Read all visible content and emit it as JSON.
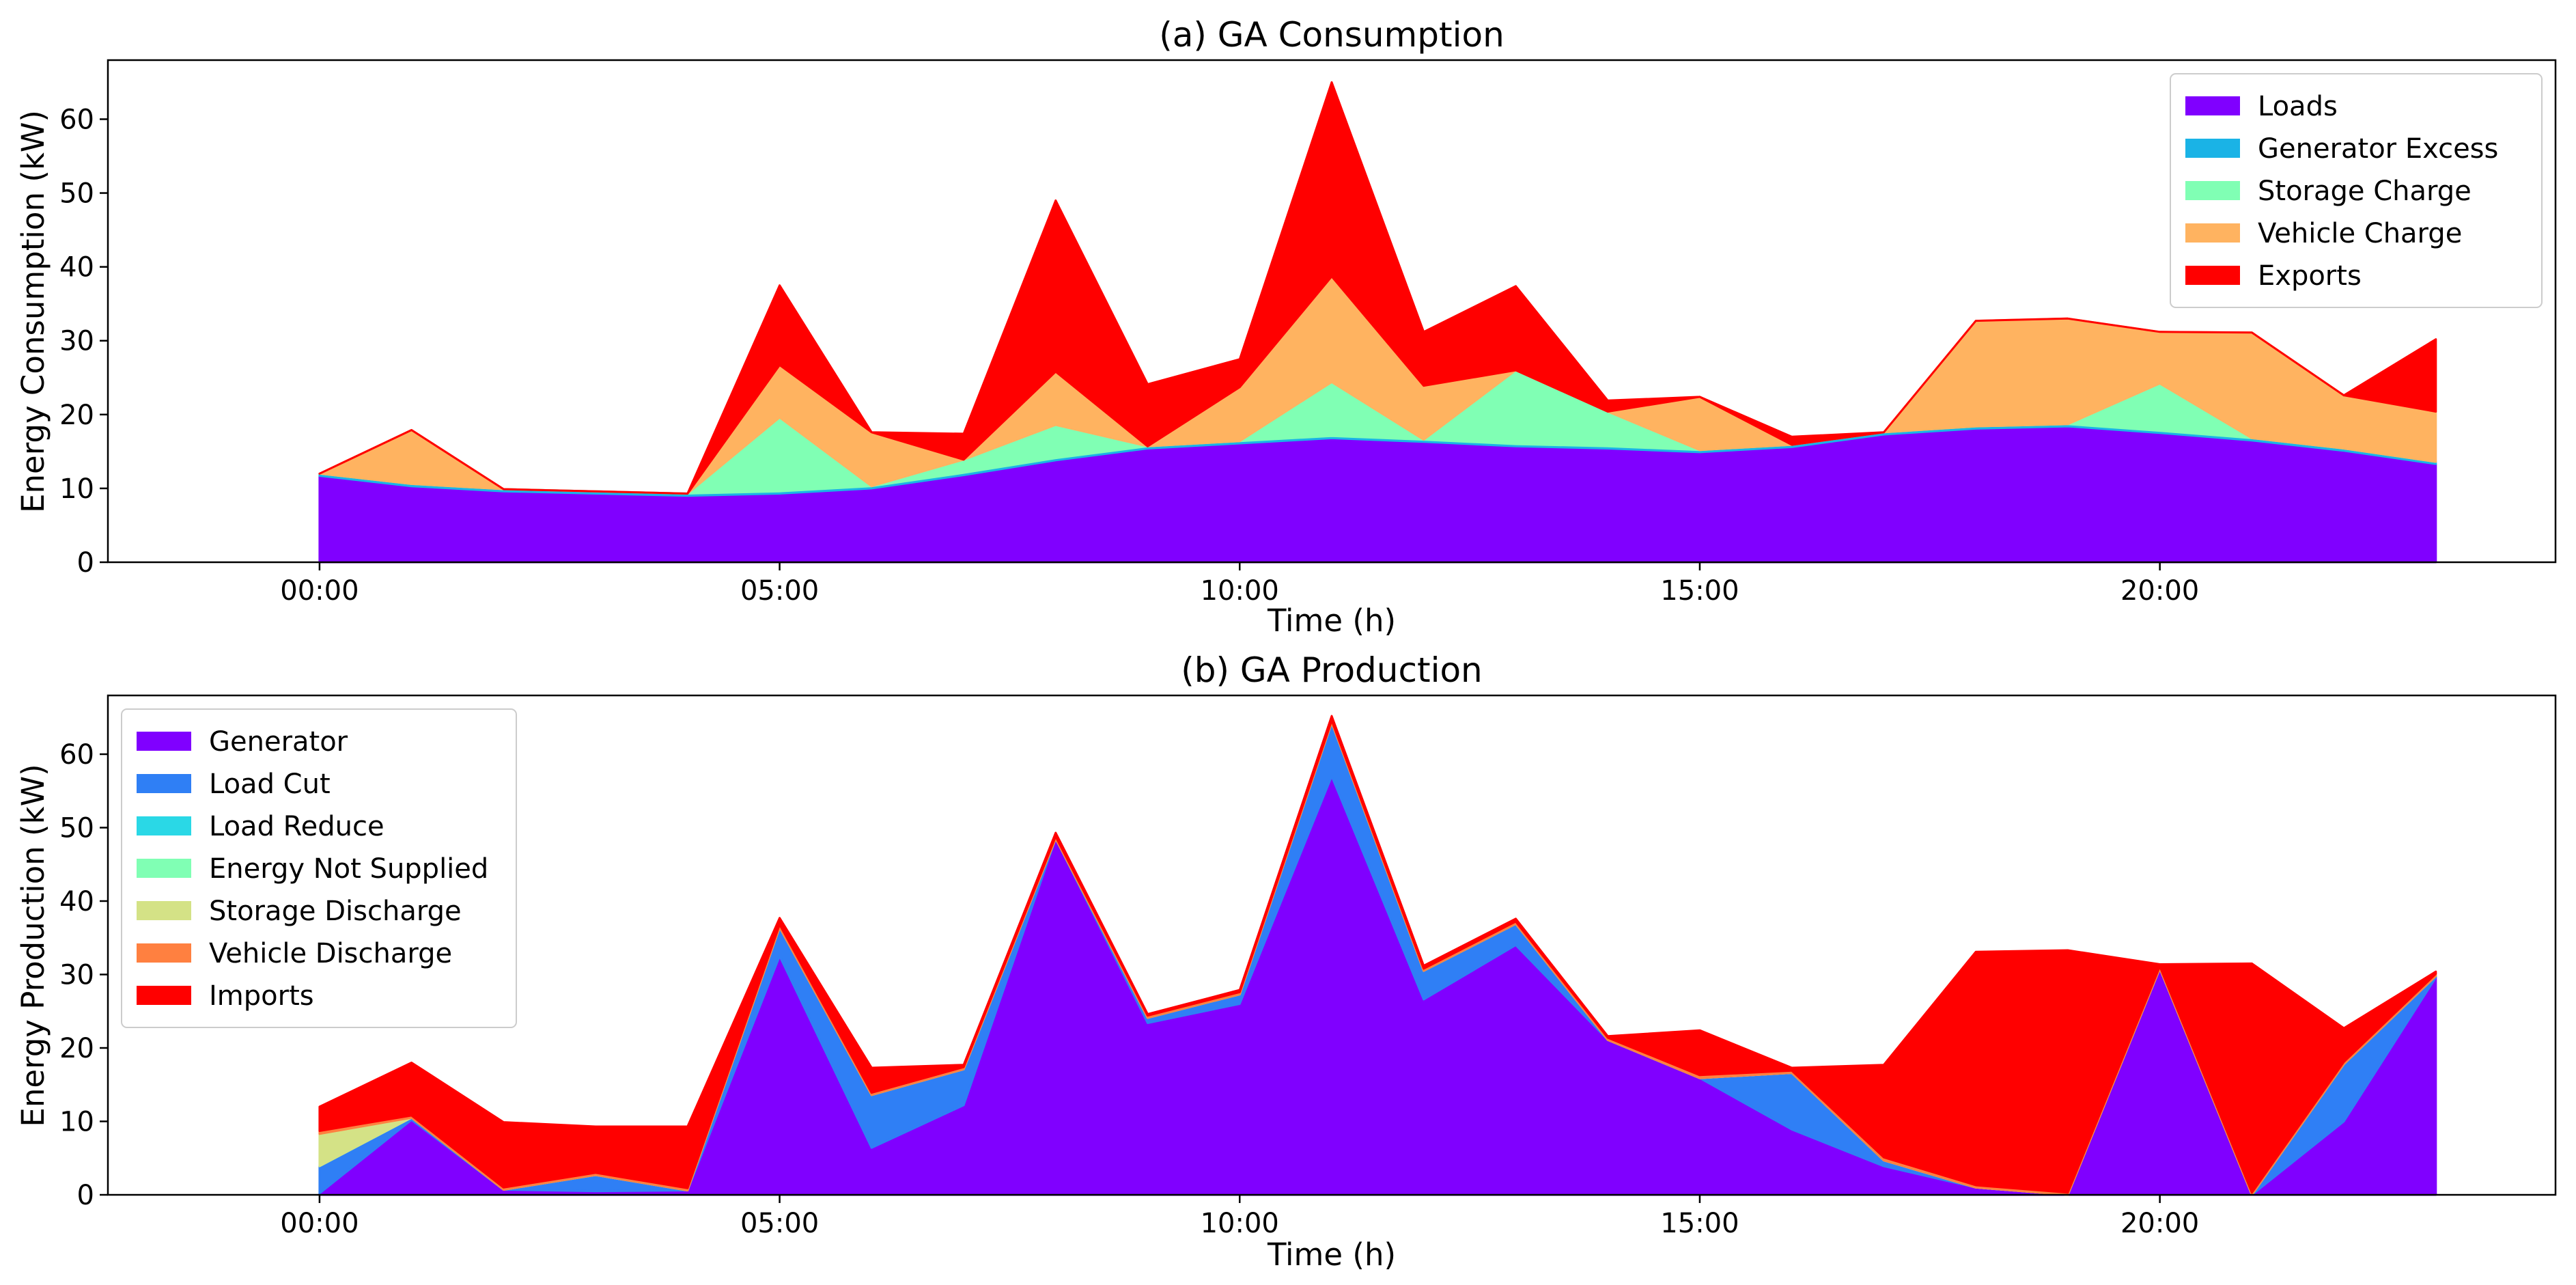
{
  "chart_data": [
    {
      "type": "area",
      "stacked": true,
      "title": "(a) GA Consumption",
      "xlabel": "Time (h)",
      "ylabel": "Energy Consumption (kW)",
      "x": [
        0,
        1,
        2,
        3,
        4,
        5,
        6,
        7,
        8,
        9,
        10,
        11,
        12,
        13,
        14,
        15,
        16,
        17,
        18,
        19,
        20,
        21,
        22,
        23
      ],
      "xlim": [
        -2.3,
        24.3
      ],
      "ylim": [
        0,
        68
      ],
      "xticks": [
        0,
        5,
        10,
        15,
        20
      ],
      "xtick_labels": [
        "00:00",
        "05:00",
        "10:00",
        "15:00",
        "20:00"
      ],
      "yticks": [
        0,
        10,
        20,
        30,
        40,
        50,
        60
      ],
      "ytick_labels": [
        "0",
        "10",
        "20",
        "30",
        "40",
        "50",
        "60"
      ],
      "legend_position": "top-right",
      "series": [
        {
          "name": "Loads",
          "color": "#8000ff",
          "values": [
            11.7,
            10.3,
            9.6,
            9.3,
            9.0,
            9.3,
            10.0,
            11.8,
            13.8,
            15.4,
            16.1,
            16.8,
            16.3,
            15.7,
            15.4,
            14.9,
            15.6,
            17.3,
            18.1,
            18.4,
            17.5,
            16.5,
            15.1,
            13.3
          ]
        },
        {
          "name": "Generator Excess",
          "color": "#1ab3e6",
          "values": [
            0.3,
            0.3,
            0.3,
            0.3,
            0.3,
            0.3,
            0.3,
            0.3,
            0.3,
            0.3,
            0.3,
            0.3,
            0.3,
            0.3,
            0.3,
            0.3,
            0.3,
            0.3,
            0.3,
            0.3,
            0.3,
            0.3,
            0.3,
            0.3
          ]
        },
        {
          "name": "Storage Charge",
          "color": "#80ffb4",
          "values": [
            0,
            0,
            0,
            0,
            0,
            10.0,
            0,
            1.8,
            4.5,
            0,
            0,
            7.3,
            0,
            10.0,
            4.7,
            0,
            0,
            0,
            0,
            0,
            6.4,
            0,
            0,
            0
          ]
        },
        {
          "name": "Vehicle Charge",
          "color": "#ffb360",
          "values": [
            0,
            7.3,
            0,
            0,
            0,
            7.1,
            7.3,
            0,
            7.2,
            0,
            7.3,
            14.3,
            7.3,
            0,
            0,
            7.2,
            0,
            0,
            14.3,
            14.3,
            7.0,
            14.3,
            7.2,
            6.8
          ]
        },
        {
          "name": "Exports",
          "color": "#ff0000",
          "values": [
            0,
            0,
            0,
            0,
            0,
            10.8,
            0,
            3.5,
            23.2,
            8.4,
            3.8,
            26.3,
            7.3,
            11.4,
            1.5,
            0,
            1.1,
            0,
            0,
            0,
            0,
            0,
            0,
            9.8
          ]
        }
      ]
    },
    {
      "type": "area",
      "stacked": true,
      "title": "(b) GA Production",
      "xlabel": "Time (h)",
      "ylabel": "Energy Production (kW)",
      "x": [
        0,
        1,
        2,
        3,
        4,
        5,
        6,
        7,
        8,
        9,
        10,
        11,
        12,
        13,
        14,
        15,
        16,
        17,
        18,
        19,
        20,
        21,
        22,
        23
      ],
      "xlim": [
        -2.3,
        24.3
      ],
      "ylim": [
        0,
        68
      ],
      "xticks": [
        0,
        5,
        10,
        15,
        20
      ],
      "xtick_labels": [
        "00:00",
        "05:00",
        "10:00",
        "15:00",
        "20:00"
      ],
      "yticks": [
        0,
        10,
        20,
        30,
        40,
        50,
        60
      ],
      "ytick_labels": [
        "0",
        "10",
        "20",
        "30",
        "40",
        "50",
        "60"
      ],
      "legend_position": "top-left",
      "series": [
        {
          "name": "Generator",
          "color": "#8000ff",
          "values": [
            0.2,
            10.2,
            0.7,
            0.5,
            0.6,
            32.5,
            6.4,
            12.2,
            48.5,
            23.4,
            26.0,
            57.0,
            26.6,
            34.0,
            21.1,
            15.9,
            8.9,
            3.9,
            1.0,
            0.0,
            30.8,
            0.0,
            10.0,
            29.6
          ]
        },
        {
          "name": "Load Cut",
          "color": "#2f7ff5",
          "values": [
            3.7,
            0.3,
            0.0,
            2.2,
            0.0,
            3.9,
            7.2,
            4.9,
            0.0,
            0.7,
            1.3,
            7.3,
            3.9,
            2.9,
            0.0,
            0.0,
            7.7,
            0.8,
            0.0,
            0.0,
            0.0,
            0.0,
            7.8,
            0.2
          ]
        },
        {
          "name": "Load Reduce",
          "color": "#2ad8e6",
          "values": [
            0,
            0,
            0,
            0,
            0,
            0,
            0,
            0,
            0,
            0,
            0,
            0,
            0,
            0,
            0,
            0,
            0,
            0,
            0,
            0,
            0,
            0,
            0,
            0
          ]
        },
        {
          "name": "Energy Not Supplied",
          "color": "#80ffb4",
          "values": [
            0,
            0,
            0,
            0,
            0,
            0,
            0,
            0,
            0,
            0,
            0,
            0,
            0,
            0,
            0,
            0,
            0,
            0,
            0,
            0,
            0,
            0,
            0,
            0
          ]
        },
        {
          "name": "Storage Discharge",
          "color": "#d4e286",
          "values": [
            4.4,
            0,
            0,
            0,
            0,
            0,
            0,
            0,
            0,
            0,
            0,
            0,
            0,
            0,
            0,
            0,
            0,
            0,
            0,
            0,
            0,
            0,
            0,
            0
          ]
        },
        {
          "name": "Vehicle Discharge",
          "color": "#ff8040",
          "values": [
            0.4,
            0.3,
            0.3,
            0.3,
            0.3,
            0.4,
            0.3,
            0.3,
            0.3,
            0.3,
            0.3,
            0.3,
            0.3,
            0.3,
            0.3,
            0.4,
            0.3,
            0.4,
            0.3,
            0.3,
            0.3,
            0.3,
            0.3,
            0.3
          ]
        },
        {
          "name": "Imports",
          "color": "#ff0000",
          "values": [
            3.3,
            7.2,
            8.9,
            6.3,
            8.4,
            0.9,
            3.4,
            0.3,
            0.5,
            0.2,
            0.3,
            0.6,
            0.4,
            0.4,
            0.2,
            6.1,
            0.4,
            12.6,
            31.8,
            33.0,
            0.3,
            31.2,
            4.6,
            0.3
          ]
        }
      ]
    }
  ]
}
